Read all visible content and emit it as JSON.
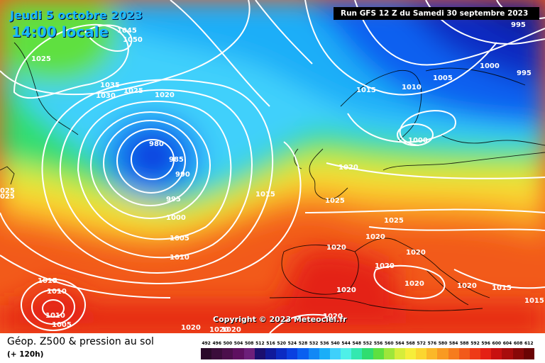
{
  "header": {
    "date": "Jeudi 5 octobre 2023",
    "time": "14:00 locale",
    "run": "Run GFS 12 Z du Samedi 30 septembre 2023",
    "corner_value": "1025"
  },
  "copyright": "Copyright © 2023 Meteociel.fr",
  "legend": {
    "title": "Géop. Z500 & pression au sol",
    "subtitle": "(+ 120h)",
    "values": [
      "492",
      "496",
      "500",
      "504",
      "508",
      "512",
      "516",
      "520",
      "524",
      "528",
      "532",
      "536",
      "540",
      "544",
      "548",
      "552",
      "556",
      "560",
      "564",
      "568",
      "572",
      "576",
      "580",
      "584",
      "588",
      "592",
      "596",
      "600",
      "604",
      "608",
      "612"
    ],
    "colors": [
      "#2a0a2a",
      "#3b0d3b",
      "#4c0f4c",
      "#5e1060",
      "#6d1f7a",
      "#1b0f6e",
      "#101a9a",
      "#0b2bc2",
      "#0a40e0",
      "#0a60f0",
      "#1288f5",
      "#1aaef8",
      "#3fd0fb",
      "#4ff0e8",
      "#33e8b0",
      "#30dd70",
      "#5ee040",
      "#9ee63a",
      "#d6ed3a",
      "#f6ee3a",
      "#fbd630",
      "#fbb828",
      "#f99a22",
      "#f67c1e",
      "#f25a1a",
      "#ee3a17",
      "#e42014",
      "#c81010",
      "#a80c0c",
      "#880808",
      "#6a0404"
    ]
  },
  "pressure_labels": [
    {
      "text": "1045"
    },
    {
      "text": "1050"
    },
    {
      "text": "1025"
    },
    {
      "text": "1035"
    },
    {
      "text": "1030"
    },
    {
      "text": "1025"
    },
    {
      "text": "1020"
    },
    {
      "text": "980"
    },
    {
      "text": "985"
    },
    {
      "text": "990"
    },
    {
      "text": "995"
    },
    {
      "text": "1000"
    },
    {
      "text": "1005"
    },
    {
      "text": "1010"
    },
    {
      "text": "1015"
    },
    {
      "text": "1025"
    },
    {
      "text": "1015"
    },
    {
      "text": "1010"
    },
    {
      "text": "1005"
    },
    {
      "text": "995"
    },
    {
      "text": "1000"
    },
    {
      "text": "995"
    },
    {
      "text": "1000"
    },
    {
      "text": "1020"
    },
    {
      "text": "1025"
    },
    {
      "text": "1020"
    },
    {
      "text": "1020"
    },
    {
      "text": "1020"
    },
    {
      "text": "1020"
    },
    {
      "text": "1020"
    },
    {
      "text": "1020"
    },
    {
      "text": "1020"
    },
    {
      "text": "1015"
    },
    {
      "text": "1015"
    },
    {
      "text": "1020"
    },
    {
      "text": "1020"
    },
    {
      "text": "1015"
    },
    {
      "text": "1010"
    },
    {
      "text": "1005"
    },
    {
      "text": "1020"
    },
    {
      "text": "1010"
    },
    {
      "text": "1020"
    },
    {
      "text": "025"
    },
    {
      "text": "025"
    }
  ]
}
